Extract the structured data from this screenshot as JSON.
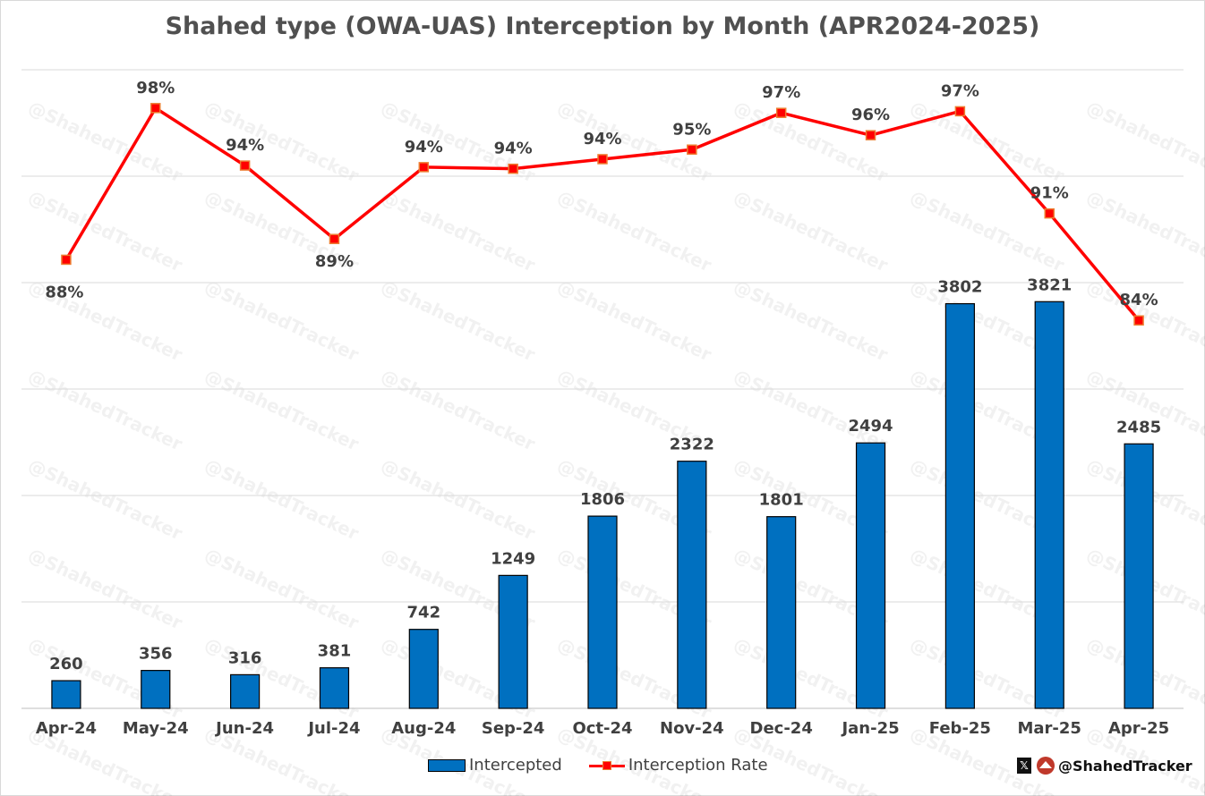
{
  "chart_data": {
    "type": "bar+line",
    "title": "Shahed type (OWA-UAS) Interception by Month (APR2024-2025)",
    "categories": [
      "Apr-24",
      "May-24",
      "Jun-24",
      "Jul-24",
      "Aug-24",
      "Sep-24",
      "Oct-24",
      "Nov-24",
      "Dec-24",
      "Jan-25",
      "Feb-25",
      "Mar-25",
      "Apr-25"
    ],
    "series": [
      {
        "name": "Intercepted",
        "type": "bar",
        "axis": "primary",
        "color": "#0070c0",
        "values": [
          260,
          356,
          316,
          381,
          742,
          1249,
          1806,
          2322,
          1801,
          2494,
          3802,
          3821,
          2485
        ],
        "labels": [
          "260",
          "356",
          "316",
          "381",
          "742",
          "1249",
          "1806",
          "2322",
          "1801",
          "2494",
          "3802",
          "3821",
          "2485"
        ]
      },
      {
        "name": "Interception Rate",
        "type": "line",
        "axis": "secondary",
        "color": "#ff0000",
        "marker_color": "#ff0000",
        "marker_edge": "#ed7d31",
        "values": [
          0.881,
          0.976,
          0.94,
          0.894,
          0.939,
          0.938,
          0.944,
          0.95,
          0.973,
          0.959,
          0.974,
          0.91,
          0.843
        ],
        "labels": [
          "88%",
          "98%",
          "94%",
          "89%",
          "94%",
          "94%",
          "94%",
          "95%",
          "97%",
          "96%",
          "97%",
          "91%",
          "84%"
        ]
      }
    ],
    "ylim": [
      0,
      6000
    ],
    "y2lim": [
      0.6,
      1.0
    ],
    "y_axis_labels_visible": false,
    "grid": true,
    "legend": "bottom"
  },
  "watermark": "@ShahedTracker",
  "brand": {
    "handle": "@ShahedTracker",
    "x_icon": "x-logo-icon",
    "logo_icon": "shahed-logo-icon"
  }
}
